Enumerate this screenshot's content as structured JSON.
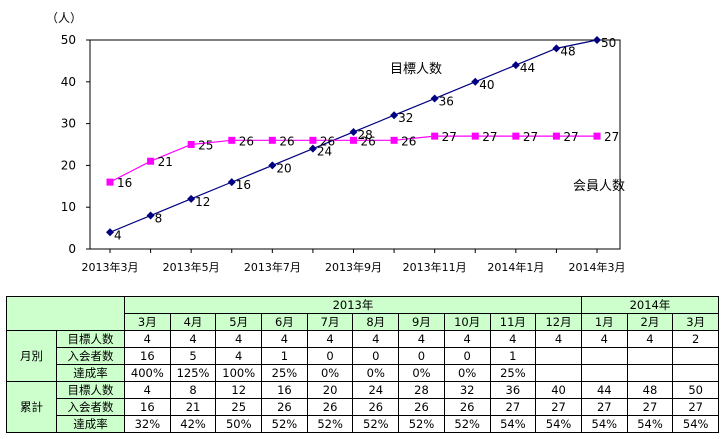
{
  "chart_data": {
    "type": "line",
    "y_unit_label": "（人）",
    "y_ticks": [
      0,
      10,
      20,
      30,
      40,
      50
    ],
    "ylim": [
      0,
      50
    ],
    "x_tick_labels": [
      "2013年3月",
      "2013年5月",
      "2013年7月",
      "2013年9月",
      "2013年11月",
      "2014年1月",
      "2014年3月"
    ],
    "x": [
      "2013年3月",
      "2013年4月",
      "2013年5月",
      "2013年6月",
      "2013年7月",
      "2013年8月",
      "2013年9月",
      "2013年10月",
      "2013年11月",
      "2013年12月",
      "2014年1月",
      "2014年2月",
      "2014年3月"
    ],
    "series": [
      {
        "name": "目標人数",
        "color": "#000080",
        "marker": "diamond",
        "values": [
          4,
          8,
          12,
          16,
          20,
          24,
          28,
          32,
          36,
          40,
          44,
          48,
          50
        ],
        "labels": [
          "4",
          "8",
          "12",
          "16",
          "20",
          "24",
          "28",
          "32",
          "36",
          "40",
          "44",
          "48",
          "50"
        ]
      },
      {
        "name": "会員人数",
        "color": "#ff00ff",
        "marker": "square",
        "values": [
          16,
          21,
          25,
          26,
          26,
          26,
          26,
          26,
          27,
          27,
          27,
          27,
          27
        ],
        "labels": [
          "16",
          "21",
          "25",
          "26",
          "26",
          "26",
          "26",
          "26",
          "27",
          "27",
          "27",
          "27",
          "27"
        ]
      }
    ],
    "grid": false,
    "legend": "inline labels on the plot"
  },
  "table": {
    "year_headers": [
      {
        "label": "2013年",
        "span": 10
      },
      {
        "label": "2014年",
        "span": 3
      }
    ],
    "months": [
      "3月",
      "4月",
      "5月",
      "6月",
      "7月",
      "8月",
      "9月",
      "10月",
      "11月",
      "12月",
      "1月",
      "2月",
      "3月"
    ],
    "groups": [
      {
        "label": "月別",
        "rows": [
          {
            "label": "目標人数",
            "cells": [
              "4",
              "4",
              "4",
              "4",
              "4",
              "4",
              "4",
              "4",
              "4",
              "4",
              "4",
              "4",
              "2"
            ]
          },
          {
            "label": "入会者数",
            "cells": [
              "16",
              "5",
              "4",
              "1",
              "0",
              "0",
              "0",
              "0",
              "1",
              "",
              "",
              "",
              ""
            ]
          },
          {
            "label": "達成率",
            "cells": [
              "400%",
              "125%",
              "100%",
              "25%",
              "0%",
              "0%",
              "0%",
              "0%",
              "25%",
              "",
              "",
              "",
              ""
            ]
          }
        ]
      },
      {
        "label": "累計",
        "rows": [
          {
            "label": "目標人数",
            "cells": [
              "4",
              "8",
              "12",
              "16",
              "20",
              "24",
              "28",
              "32",
              "36",
              "40",
              "44",
              "48",
              "50"
            ]
          },
          {
            "label": "入会者数",
            "cells": [
              "16",
              "21",
              "25",
              "26",
              "26",
              "26",
              "26",
              "26",
              "27",
              "27",
              "27",
              "27",
              "27"
            ]
          },
          {
            "label": "達成率",
            "cells": [
              "32%",
              "42%",
              "50%",
              "52%",
              "52%",
              "52%",
              "52%",
              "52%",
              "54%",
              "54%",
              "54%",
              "54%",
              "54%"
            ]
          }
        ]
      }
    ]
  }
}
